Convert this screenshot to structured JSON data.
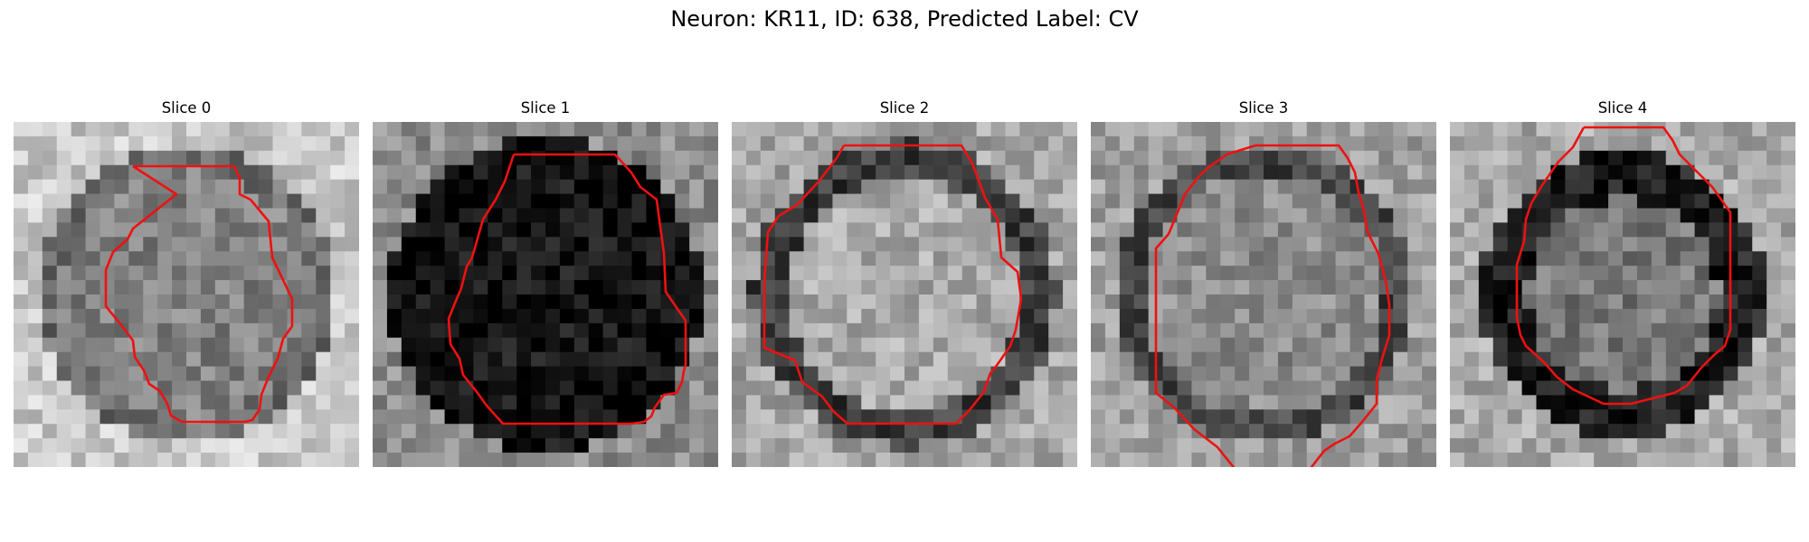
{
  "figure": {
    "title": "Neuron: KR11, ID: 638, Predicted Label: CV",
    "outline_color": "#ee1111"
  },
  "panels": [
    {
      "label": "Slice 0",
      "tone": "light-grey",
      "outline": [
        [
          101,
          0
        ],
        [
          201,
          0
        ],
        [
          203,
          14
        ],
        [
          208,
          14
        ],
        [
          222,
          30
        ],
        [
          227,
          54
        ],
        [
          222,
          72
        ],
        [
          218,
          86
        ],
        [
          218,
          98
        ],
        [
          222,
          113
        ],
        [
          218,
          122
        ],
        [
          211,
          133
        ],
        [
          207,
          150
        ],
        [
          207,
          160
        ],
        [
          192,
          175
        ],
        [
          146,
          175
        ],
        [
          138,
          162
        ],
        [
          132,
          150
        ],
        [
          128,
          138
        ],
        [
          120,
          118
        ],
        [
          112,
          110
        ],
        [
          108,
          98
        ],
        [
          88,
          80
        ],
        [
          88,
          64
        ],
        [
          106,
          54
        ],
        [
          119,
          30
        ],
        [
          101,
          0
        ]
      ]
    },
    {
      "label": "Slice 1",
      "tone": "dark-interior",
      "outline": [
        [
          0,
          0
        ],
        [
          0,
          0
        ]
      ]
    },
    {
      "label": "Slice 2",
      "tone": "light-interior",
      "outline": [
        [
          0,
          0
        ],
        [
          0,
          0
        ]
      ]
    },
    {
      "label": "Slice 3",
      "tone": "mixed",
      "outline": [
        [
          0,
          0
        ],
        [
          0,
          0
        ]
      ]
    },
    {
      "label": "Slice 4",
      "tone": "dark-ring",
      "outline": [
        [
          0,
          0
        ],
        [
          0,
          0
        ]
      ]
    }
  ]
}
